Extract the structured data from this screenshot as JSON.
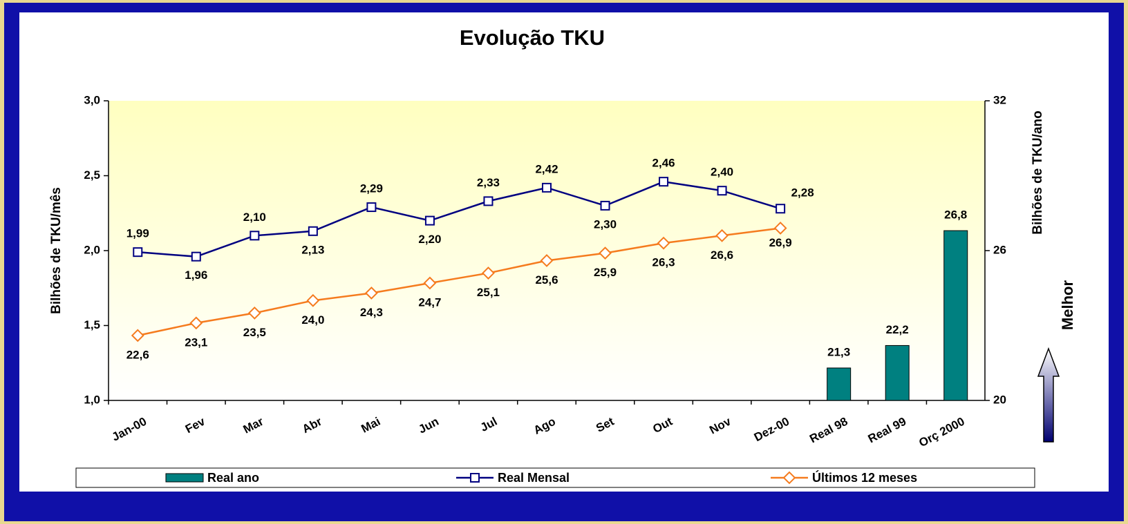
{
  "chart_data": {
    "type": "combo",
    "title": "Evolução TKU",
    "categories": [
      "Jan-00",
      "Fev",
      "Mar",
      "Abr",
      "Mai",
      "Jun",
      "Jul",
      "Ago",
      "Set",
      "Out",
      "Nov",
      "Dez-00",
      "Real 98",
      "Real 99",
      "Orç 2000"
    ],
    "y_label": "Bilhões de TKU/mês",
    "y2_label": "Bilhões de TKU/ano",
    "annotation": "Melhor",
    "ylim": [
      1,
      3
    ],
    "yticks": [
      {
        "value": 1,
        "label": "1,0"
      },
      {
        "value": 1.5,
        "label": "1,5"
      },
      {
        "value": 2,
        "label": "2,0"
      },
      {
        "value": 2.5,
        "label": "2,5"
      },
      {
        "value": 3,
        "label": "3,0"
      }
    ],
    "y2lim": [
      20,
      32
    ],
    "y2ticks": [
      20,
      26,
      32
    ],
    "legend": "bottom",
    "series": [
      {
        "name": "Real ano",
        "type": "bar",
        "axis": "y2",
        "color": "#008080",
        "values": [
          null,
          null,
          null,
          null,
          null,
          null,
          null,
          null,
          null,
          null,
          null,
          null,
          21.3,
          22.2,
          26.8
        ],
        "value_labels": [
          null,
          null,
          null,
          null,
          null,
          null,
          null,
          null,
          null,
          null,
          null,
          null,
          "21,3",
          "22,2",
          "26,8"
        ]
      },
      {
        "name": "Real Mensal",
        "type": "line",
        "axis": "y",
        "color": "#000080",
        "marker": "square",
        "values": [
          1.99,
          1.96,
          2.1,
          2.13,
          2.29,
          2.2,
          2.33,
          2.42,
          2.3,
          2.46,
          2.4,
          2.28,
          null,
          null,
          null
        ],
        "value_labels": [
          "1,99",
          "1,96",
          "2,10",
          "2,13",
          "2,29",
          "2,20",
          "2,33",
          "2,42",
          "2,30",
          "2,46",
          "2,40",
          "2,28",
          null,
          null,
          null
        ]
      },
      {
        "name": "Últimos 12 meses",
        "type": "line",
        "axis": "y2",
        "color": "#f57b1e",
        "marker": "diamond",
        "values": [
          22.6,
          23.1,
          23.5,
          24.0,
          24.3,
          24.7,
          25.1,
          25.6,
          25.9,
          26.3,
          26.6,
          26.9,
          null,
          null,
          null
        ],
        "value_labels": [
          "22,6",
          "23,1",
          "23,5",
          "24,0",
          "24,3",
          "24,7",
          "25,1",
          "25,6",
          "25,9",
          "26,3",
          "26,6",
          "26,9",
          null,
          null,
          null
        ]
      }
    ]
  }
}
